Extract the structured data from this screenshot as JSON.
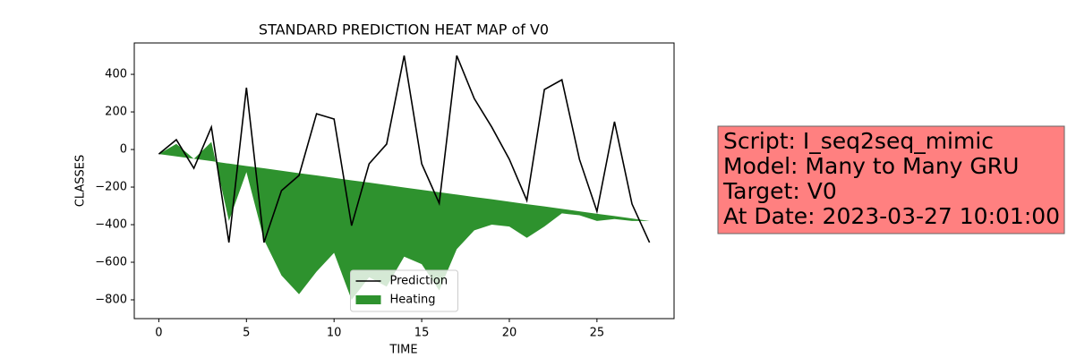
{
  "chart_data": {
    "type": "line-area",
    "title": "STANDARD PREDICTION HEAT MAP of V0",
    "x_label": "TIME",
    "y_label": "CLASSES",
    "x": [
      0,
      1,
      2,
      3,
      4,
      5,
      6,
      7,
      8,
      9,
      10,
      11,
      12,
      13,
      14,
      15,
      16,
      17,
      18,
      19,
      20,
      21,
      22,
      23,
      24,
      25,
      26,
      27,
      28
    ],
    "xlim": [
      -1.4,
      29.4
    ],
    "xticks": [
      0,
      5,
      10,
      15,
      20,
      25
    ],
    "ylim": [
      -900,
      567
    ],
    "yticks": [
      {
        "value": -800,
        "label": "−800"
      },
      {
        "value": -600,
        "label": "−600"
      },
      {
        "value": -400,
        "label": "−400"
      },
      {
        "value": -200,
        "label": "−200"
      },
      0,
      200,
      400
    ],
    "legend": "lower center",
    "series": [
      {
        "name": "Prediction",
        "kind": "line",
        "color": "#000000",
        "values": [
          -24,
          52,
          -100,
          119,
          -495,
          329,
          -495,
          -219,
          -138,
          190,
          162,
          -405,
          -76,
          29,
          500,
          -76,
          -286,
          500,
          271,
          119,
          -52,
          -271,
          319,
          371,
          -52,
          -329,
          148,
          -290,
          -495
        ]
      },
      {
        "name": "Heating",
        "kind": "area",
        "color": "#2e922e",
        "y1": [
          -24,
          30,
          -50,
          40,
          -380,
          -120,
          -480,
          -670,
          -770,
          -650,
          -550,
          -800,
          -680,
          -730,
          -570,
          -610,
          -750,
          -530,
          -430,
          -400,
          -410,
          -470,
          -410,
          -340,
          -350,
          -380,
          -370,
          -380,
          -380
        ],
        "y2": [
          -24,
          -37,
          -49,
          -62,
          -75,
          -88,
          -100,
          -113,
          -126,
          -138,
          -151,
          -164,
          -176,
          -189,
          -202,
          -215,
          -227,
          -240,
          -253,
          -265,
          -278,
          -291,
          -303,
          -316,
          -329,
          -342,
          -354,
          -367,
          -380
        ]
      }
    ],
    "textbox": {
      "color": "#ff8080",
      "lines": [
        "Script: I_seq2seq_mimic",
        "Model: Many to Many GRU",
        "Target: V0",
        "At Date: 2023-03-27 10:01:00"
      ]
    }
  }
}
